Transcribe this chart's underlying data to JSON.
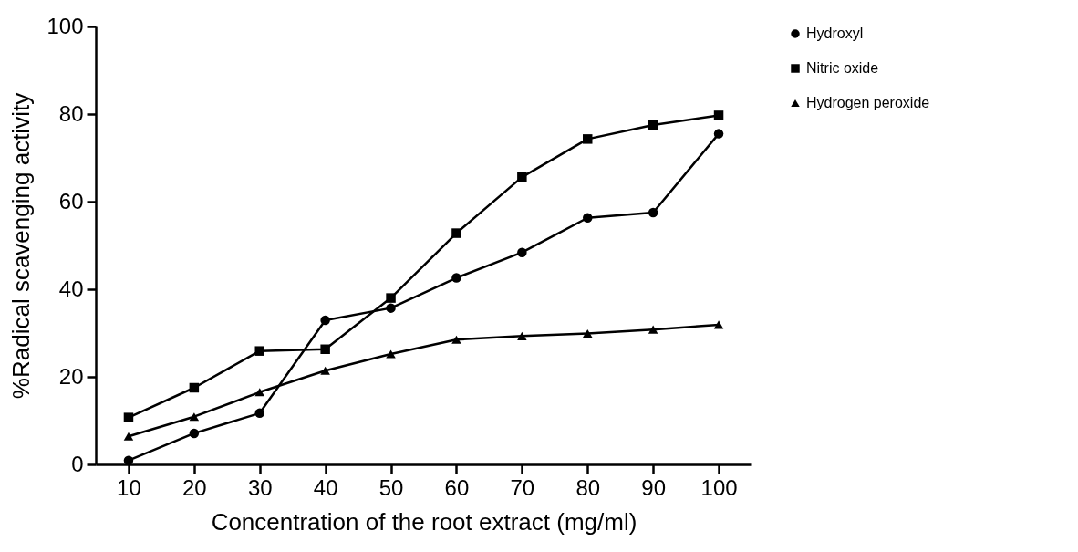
{
  "chart_data": {
    "type": "line",
    "xlabel": "Concentration of the root extract (mg/ml)",
    "ylabel": "%Radical scavenging activity",
    "x": [
      10,
      20,
      30,
      40,
      50,
      60,
      70,
      80,
      90,
      100
    ],
    "xlim": [
      5,
      105
    ],
    "xticks": [
      10,
      20,
      30,
      40,
      50,
      60,
      70,
      80,
      90,
      100
    ],
    "ylim": [
      0,
      100
    ],
    "yticks": [
      0,
      20,
      40,
      60,
      80,
      100
    ],
    "grid": false,
    "legend": "top right",
    "line_style": "solid",
    "series": [
      {
        "name": "Hydroxyl",
        "color": "#000000",
        "marker": "circle",
        "values": [
          0.9,
          7.1,
          11.7,
          32.9,
          35.7,
          42.6,
          48.4,
          56.3,
          57.5,
          75.5
        ]
      },
      {
        "name": "Nitric oxide",
        "color": "#000000",
        "marker": "square",
        "values": [
          10.7,
          17.5,
          25.9,
          26.3,
          38,
          52.8,
          65.6,
          74.3,
          77.5,
          79.7
        ]
      },
      {
        "name": "Hydrogen peroxide",
        "color": "#000000",
        "marker": "triangle",
        "values": [
          6.4,
          10.9,
          16.5,
          21.4,
          25.2,
          28.5,
          29.3,
          29.9,
          30.8,
          31.9
        ]
      }
    ]
  }
}
